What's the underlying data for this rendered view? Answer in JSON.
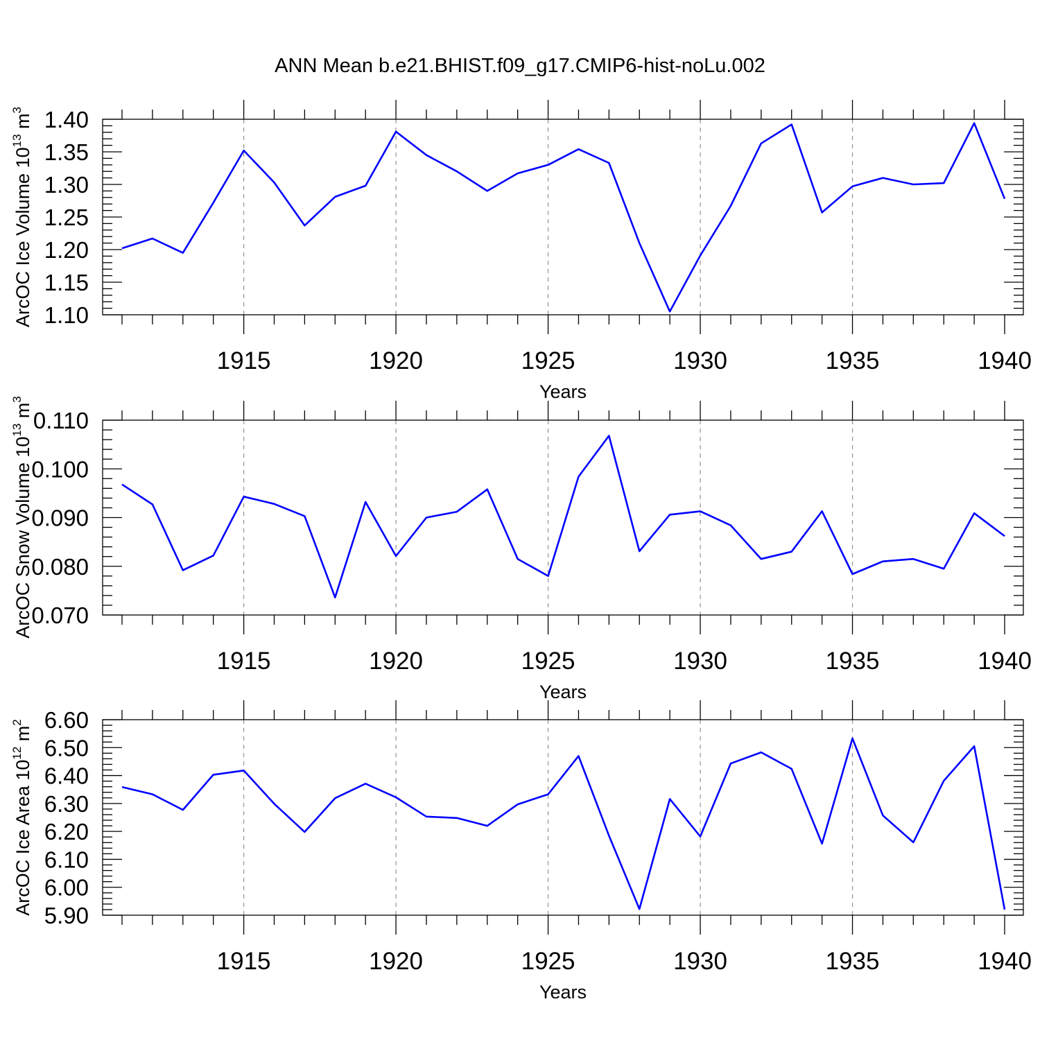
{
  "title": "ANN Mean b.e21.BHIST.f09_g17.CMIP6-hist-noLu.002",
  "chart_data": [
    {
      "type": "line",
      "title": "ANN Mean b.e21.BHIST.f09_g17.CMIP6-hist-noLu.002",
      "xlabel": "Years",
      "ylabel": "ArcOC Ice Volume 10",
      "ylabel_exp": "13",
      "ylabel_unit": " m",
      "ylabel_unit_exp": "3",
      "xlim": [
        1911,
        1940
      ],
      "ylim": [
        1.1,
        1.4
      ],
      "x_ticks": [
        "1915",
        "1920",
        "1925",
        "1930",
        "1935",
        "1940"
      ],
      "y_ticks": [
        "1.10",
        "1.15",
        "1.20",
        "1.25",
        "1.30",
        "1.35",
        "1.40"
      ],
      "grid": "vertical dashed at major x ticks",
      "color": "#0000ff",
      "x": [
        1911,
        1912,
        1913,
        1914,
        1915,
        1916,
        1917,
        1918,
        1919,
        1920,
        1921,
        1922,
        1923,
        1924,
        1925,
        1926,
        1927,
        1928,
        1929,
        1930,
        1931,
        1932,
        1933,
        1934,
        1935,
        1936,
        1937,
        1938,
        1939,
        1940
      ],
      "values": [
        1.202,
        1.217,
        1.195,
        1.272,
        1.352,
        1.303,
        1.237,
        1.281,
        1.298,
        1.381,
        1.345,
        1.32,
        1.29,
        1.317,
        1.33,
        1.354,
        1.333,
        1.21,
        1.105,
        1.191,
        1.267,
        1.363,
        1.392,
        1.257,
        1.297,
        1.31,
        1.3,
        1.302,
        1.394,
        1.278
      ]
    },
    {
      "type": "line",
      "xlabel": "Years",
      "ylabel": "ArcOC Snow Volume 10",
      "ylabel_exp": "13",
      "ylabel_unit": " m",
      "ylabel_unit_exp": "3",
      "xlim": [
        1911,
        1940
      ],
      "ylim": [
        0.07,
        0.11
      ],
      "x_ticks": [
        "1915",
        "1920",
        "1925",
        "1930",
        "1935",
        "1940"
      ],
      "y_ticks": [
        "0.070",
        "0.080",
        "0.090",
        "0.100",
        "0.110"
      ],
      "grid": "vertical dashed at major x ticks",
      "color": "#0000ff",
      "x": [
        1911,
        1912,
        1913,
        1914,
        1915,
        1916,
        1917,
        1918,
        1919,
        1920,
        1921,
        1922,
        1923,
        1924,
        1925,
        1926,
        1927,
        1928,
        1929,
        1930,
        1931,
        1932,
        1933,
        1934,
        1935,
        1936,
        1937,
        1938,
        1939,
        1940
      ],
      "values": [
        0.0968,
        0.0927,
        0.0792,
        0.0822,
        0.0943,
        0.0928,
        0.0903,
        0.0736,
        0.0932,
        0.0821,
        0.09,
        0.0912,
        0.0958,
        0.0815,
        0.078,
        0.0984,
        0.1068,
        0.0831,
        0.0906,
        0.0913,
        0.0884,
        0.0815,
        0.083,
        0.0913,
        0.0784,
        0.081,
        0.0815,
        0.0795,
        0.0909,
        0.0862
      ]
    },
    {
      "type": "line",
      "xlabel": "Years",
      "ylabel": "ArcOC Ice Area 10",
      "ylabel_exp": "12",
      "ylabel_unit": " m",
      "ylabel_unit_exp": "2",
      "xlim": [
        1911,
        1940
      ],
      "ylim": [
        5.9,
        6.6
      ],
      "x_ticks": [
        "1915",
        "1920",
        "1925",
        "1930",
        "1935",
        "1940"
      ],
      "y_ticks": [
        "5.90",
        "6.00",
        "6.10",
        "6.20",
        "6.30",
        "6.40",
        "6.50",
        "6.60"
      ],
      "grid": "vertical dashed at major x ticks",
      "color": "#0000ff",
      "x": [
        1911,
        1912,
        1913,
        1914,
        1915,
        1916,
        1917,
        1918,
        1919,
        1920,
        1921,
        1922,
        1923,
        1924,
        1925,
        1926,
        1927,
        1928,
        1929,
        1930,
        1931,
        1932,
        1933,
        1934,
        1935,
        1936,
        1937,
        1938,
        1939,
        1940
      ],
      "values": [
        6.359,
        6.333,
        6.277,
        6.403,
        6.418,
        6.299,
        6.198,
        6.319,
        6.371,
        6.322,
        6.253,
        6.248,
        6.22,
        6.297,
        6.333,
        6.47,
        6.185,
        5.922,
        6.316,
        6.182,
        6.443,
        6.483,
        6.424,
        6.156,
        6.533,
        6.257,
        6.161,
        6.381,
        6.505,
        5.92
      ]
    }
  ]
}
